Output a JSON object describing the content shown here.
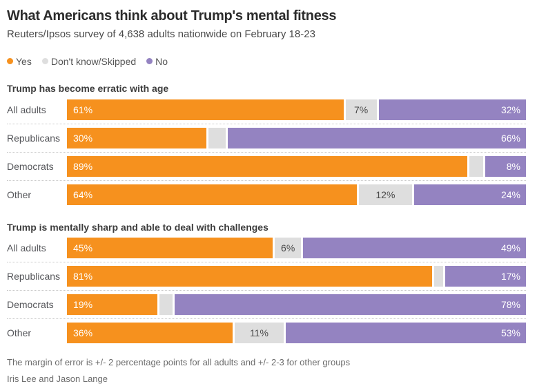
{
  "header": {
    "title": "What Americans think about Trump's mental fitness",
    "subtitle": "Reuters/Ipsos survey of 4,638 adults nationwide on February 18-23"
  },
  "colors": {
    "yes": "#f6911e",
    "dk": "#dedede",
    "no": "#9483c1"
  },
  "legend": {
    "yes_label": "Yes",
    "dk_label": "Don't know/Skipped",
    "no_label": "No"
  },
  "chart_data": {
    "type": "bar",
    "orientation": "horizontal",
    "stacked": true,
    "xlim": [
      0,
      100
    ],
    "grid": false,
    "legend_position": "top",
    "title": "What Americans think about Trump's mental fitness",
    "subtitle": "Reuters/Ipsos survey of 4,638 adults nationwide on February 18-23",
    "series_names": [
      "Yes",
      "Don't know/Skipped",
      "No"
    ],
    "groups": [
      {
        "header": "Trump has become erratic with age",
        "categories": [
          "All adults",
          "Republicans",
          "Democrats",
          "Other"
        ],
        "rows": [
          {
            "label": "All adults",
            "yes": 61,
            "dk": 7,
            "no": 32,
            "yes_label": "61%",
            "dk_label": "7%",
            "no_label": "32%"
          },
          {
            "label": "Republicans",
            "yes": 30,
            "dk": 4,
            "no": 66,
            "yes_label": "30%",
            "dk_label": "",
            "no_label": "66%"
          },
          {
            "label": "Democrats",
            "yes": 89,
            "dk": 3,
            "no": 8,
            "yes_label": "89%",
            "dk_label": "",
            "no_label": "8%"
          },
          {
            "label": "Other",
            "yes": 64,
            "dk": 12,
            "no": 24,
            "yes_label": "64%",
            "dk_label": "12%",
            "no_label": "24%"
          }
        ]
      },
      {
        "header": "Trump is mentally sharp and able to deal with challenges",
        "categories": [
          "All adults",
          "Republicans",
          "Democrats",
          "Other"
        ],
        "rows": [
          {
            "label": "All adults",
            "yes": 45,
            "dk": 6,
            "no": 49,
            "yes_label": "45%",
            "dk_label": "6%",
            "no_label": "49%"
          },
          {
            "label": "Republicans",
            "yes": 81,
            "dk": 2,
            "no": 17,
            "yes_label": "81%",
            "dk_label": "",
            "no_label": "17%"
          },
          {
            "label": "Democrats",
            "yes": 19,
            "dk": 3,
            "no": 78,
            "yes_label": "19%",
            "dk_label": "",
            "no_label": "78%"
          },
          {
            "label": "Other",
            "yes": 36,
            "dk": 11,
            "no": 53,
            "yes_label": "36%",
            "dk_label": "11%",
            "no_label": "53%"
          }
        ]
      }
    ]
  },
  "footer": {
    "note": "The margin of error is +/- 2 percentage points for all adults and +/- 2-3 for other groups",
    "byline": "Iris Lee and Jason Lange"
  }
}
